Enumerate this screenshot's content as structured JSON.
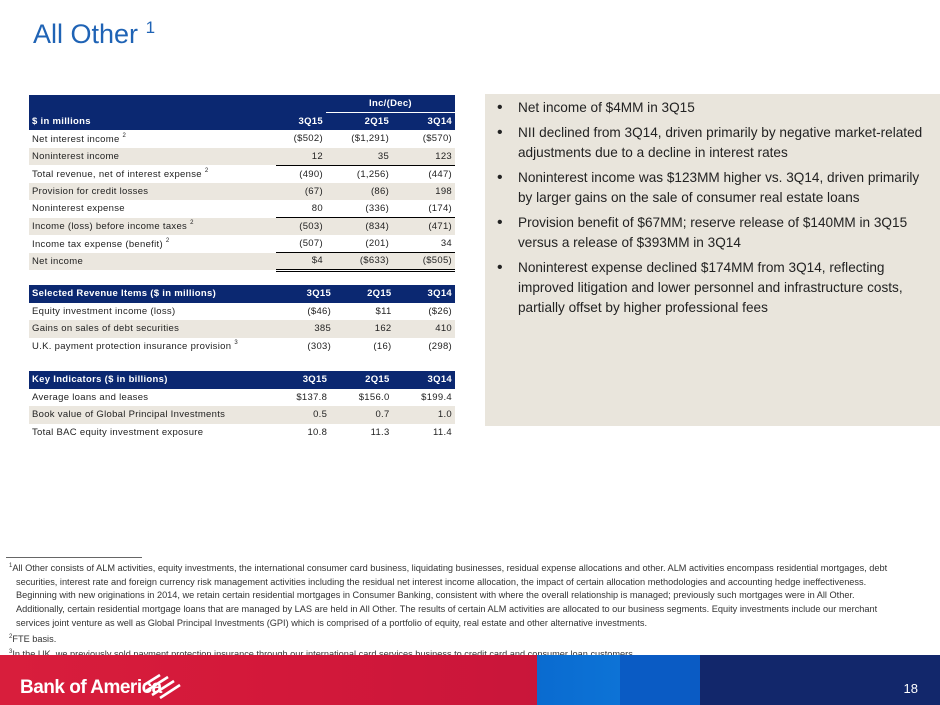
{
  "title": "All Other",
  "title_sup": "1",
  "table1": {
    "group_header": "Inc/(Dec)",
    "headers": [
      "$ in millions",
      "3Q15",
      "2Q15",
      "3Q14"
    ],
    "rows": [
      {
        "label": "Net interest income",
        "sup": "2",
        "v": [
          "($502)",
          "($1,291)",
          "($570)"
        ]
      },
      {
        "label": "Noninterest income",
        "sup": "",
        "v": [
          "12",
          "35",
          "123"
        ]
      },
      {
        "label": "Total revenue, net of interest expense",
        "sup": "2",
        "v": [
          "(490)",
          "(1,256)",
          "(447)"
        ]
      },
      {
        "label": "Provision for credit losses",
        "sup": "",
        "v": [
          "(67)",
          "(86)",
          "198"
        ]
      },
      {
        "label": "Noninterest expense",
        "sup": "",
        "v": [
          "80",
          "(336)",
          "(174)"
        ]
      },
      {
        "label": "Income (loss) before income taxes",
        "sup": "2",
        "v": [
          "(503)",
          "(834)",
          "(471)"
        ]
      },
      {
        "label": "Income tax expense (benefit)",
        "sup": "2",
        "v": [
          "(507)",
          "(201)",
          "34"
        ]
      },
      {
        "label": "Net income",
        "sup": "",
        "v": [
          "$4",
          "($633)",
          "($505)"
        ]
      }
    ]
  },
  "table2": {
    "headers": [
      "Selected Revenue Items ($ in millions)",
      "3Q15",
      "2Q15",
      "3Q14"
    ],
    "rows": [
      {
        "label": "Equity investment income (loss)",
        "sup": "",
        "v": [
          "($46)",
          "$11",
          "($26)"
        ]
      },
      {
        "label": "Gains on sales of debt securities",
        "sup": "",
        "v": [
          "385",
          "162",
          "410"
        ]
      },
      {
        "label": "U.K. payment protection insurance provision",
        "sup": "3",
        "v": [
          "(303)",
          "(16)",
          "(298)"
        ]
      }
    ]
  },
  "table3": {
    "headers": [
      "Key Indicators ($ in billions)",
      "3Q15",
      "2Q15",
      "3Q14"
    ],
    "rows": [
      {
        "label": "Average loans and leases",
        "sup": "",
        "v": [
          "$137.8",
          "$156.0",
          "$199.4"
        ]
      },
      {
        "label": "Book value of Global Principal Investments",
        "sup": "",
        "v": [
          "0.5",
          "0.7",
          "1.0"
        ]
      },
      {
        "label": "Total BAC equity investment exposure",
        "sup": "",
        "v": [
          "10.8",
          "11.3",
          "11.4"
        ]
      }
    ]
  },
  "bullets": [
    "Net income of $4MM in 3Q15",
    "NII declined from 3Q14, driven primarily by negative market-related adjustments due to a decline in interest rates",
    "Noninterest income was $123MM higher vs. 3Q14, driven primarily by larger gains on the sale of consumer real estate loans",
    "Provision benefit of $67MM; reserve release of $140MM in 3Q15 versus a release of $393MM in 3Q14",
    "Noninterest expense declined $174MM from 3Q14, reflecting improved litigation and lower personnel and infrastructure costs, partially offset by higher professional fees"
  ],
  "footnotes": [
    {
      "n": "1",
      "text": "All Other consists of ALM activities, equity investments, the international consumer card business, liquidating businesses, residual expense allocations and other. ALM activities encompass residential mortgages, debt securities, interest rate and foreign currency risk management activities including the residual net interest income allocation, the impact of certain allocation methodologies and accounting hedge ineffectiveness. Beginning with new originations in 2014, we retain certain residential mortgages in Consumer Banking, consistent with where the overall relationship is managed; previously such mortgages were in All Other. Additionally, certain residential mortgage loans that are managed by LAS are held in All Other. The results of certain ALM activities are allocated to our business segments. Equity investments include our merchant services joint venture as well as Global Principal Investments (GPI) which is comprised of a portfolio of equity, real estate and other alternative investments."
    },
    {
      "n": "2",
      "text": "FTE basis."
    },
    {
      "n": "3",
      "text": "In the UK, we previously sold payment protection insurance through our international card services business to credit card and consumer loan customers."
    }
  ],
  "footer": {
    "logo": "Bank of America",
    "page": "18"
  },
  "colors": {
    "title": "#1f63b5",
    "header": "#0b2871",
    "panel": "#e9e5dc",
    "red": "#d81e3c",
    "blue": "#12276b"
  }
}
